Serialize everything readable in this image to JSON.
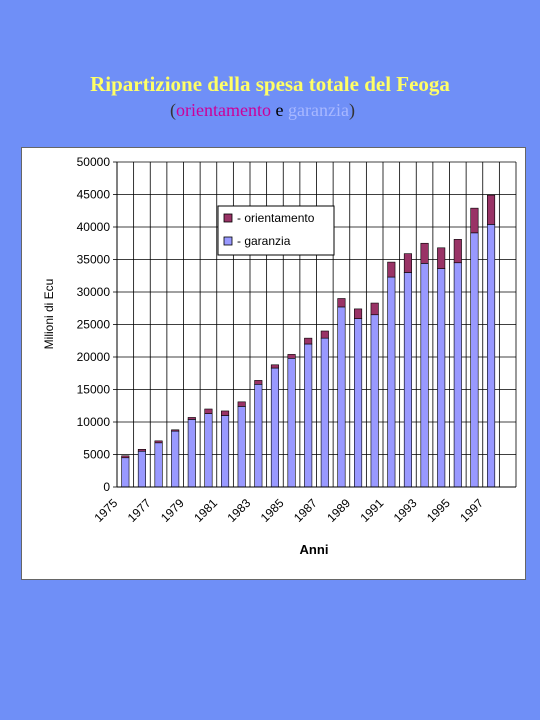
{
  "title": "Ripartizione della spesa totale del Feoga",
  "subtitle": {
    "open": "(",
    "part1": "orientamento",
    "sep": " e ",
    "part2": "garanzia",
    "close": ")"
  },
  "chart_data": {
    "type": "bar",
    "stacked": true,
    "xlabel": "Anni",
    "ylabel": "Milioni di Ecu",
    "ylim": [
      0,
      50000
    ],
    "yticks": [
      0,
      5000,
      10000,
      15000,
      20000,
      25000,
      30000,
      35000,
      40000,
      45000,
      50000
    ],
    "xtick_labels": [
      "1975",
      "1977",
      "1979",
      "1981",
      "1983",
      "1985",
      "1987",
      "1989",
      "1991",
      "1993",
      "1995",
      "1997"
    ],
    "categories": [
      "1975",
      "1976",
      "1977",
      "1978",
      "1979",
      "1980",
      "1981",
      "1982",
      "1983",
      "1984",
      "1985",
      "1986",
      "1987",
      "1988",
      "1989",
      "1990",
      "1991",
      "1992",
      "1993",
      "1994",
      "1995",
      "1996",
      "1997",
      "1998"
    ],
    "grid": true,
    "legend_position": "top-right",
    "series": [
      {
        "name": "- garanzia",
        "color": "#9999ff",
        "values": [
          4500,
          5500,
          6800,
          8600,
          10400,
          11300,
          11000,
          12400,
          15800,
          18300,
          19800,
          22000,
          22900,
          27700,
          25900,
          26500,
          32300,
          33000,
          34400,
          33600,
          34500,
          39100,
          40400,
          0
        ]
      },
      {
        "name": "- orientamento",
        "color": "#993366",
        "values": [
          300,
          300,
          300,
          200,
          300,
          700,
          700,
          700,
          600,
          500,
          600,
          900,
          1100,
          1300,
          1500,
          1800,
          2300,
          2900,
          3100,
          3200,
          3600,
          3800,
          4500,
          0
        ]
      }
    ]
  }
}
